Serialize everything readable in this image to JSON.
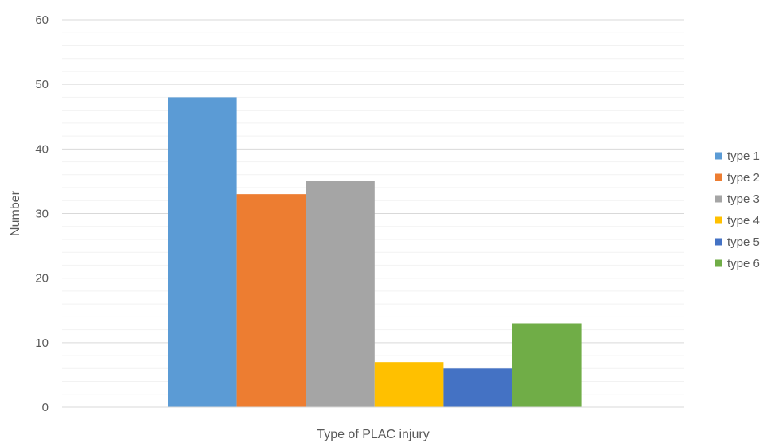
{
  "chart_data": {
    "type": "bar",
    "title": "",
    "xlabel": "Type of PLAC injury",
    "ylabel": "Number",
    "ylim": [
      0,
      60
    ],
    "yticks": [
      0,
      10,
      20,
      30,
      40,
      50,
      60
    ],
    "minor_gridlines": true,
    "legend_position": "right",
    "series": [
      {
        "name": "type 1",
        "value": 48,
        "color": "#5B9BD5"
      },
      {
        "name": "type 2",
        "value": 33,
        "color": "#ED7D31"
      },
      {
        "name": "type 3",
        "value": 35,
        "color": "#A5A5A5"
      },
      {
        "name": "type 4",
        "value": 7,
        "color": "#FFC000"
      },
      {
        "name": "type 5",
        "value": 6,
        "color": "#4472C4"
      },
      {
        "name": "type 6",
        "value": 13,
        "color": "#70AD47"
      }
    ]
  }
}
